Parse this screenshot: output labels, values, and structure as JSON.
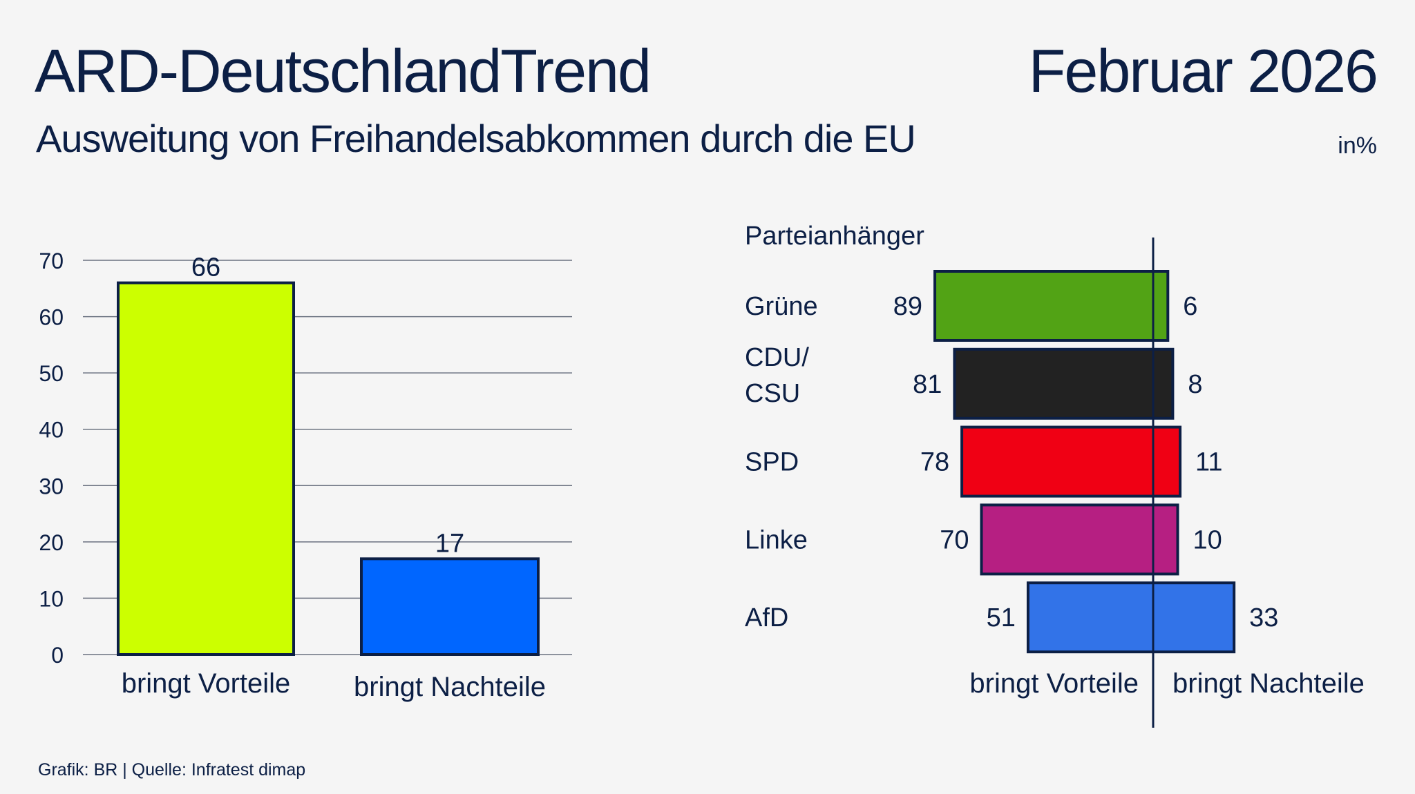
{
  "header": {
    "title": "ARD-DeutschlandTrend",
    "date": "Februar 2026",
    "subtitle": "Ausweitung von Freihandelsabkommen durch die EU",
    "unit": "in%"
  },
  "footer": {
    "source": "Grafik: BR | Quelle: Infratest dimap"
  },
  "colors": {
    "text": "#0c1f45",
    "background": "#f5f5f5",
    "grid": "#6b7280"
  },
  "chart_data": [
    {
      "type": "bar",
      "categories": [
        "bringt Vorteile",
        "bringt Nachteile"
      ],
      "values": [
        66,
        17
      ],
      "colors": [
        "#ccff00",
        "#0066ff"
      ],
      "ylim": [
        0,
        70
      ],
      "yticks": [
        0,
        10,
        20,
        30,
        40,
        50,
        60,
        70
      ],
      "grid": true
    },
    {
      "type": "bar",
      "orientation": "diverging-horizontal",
      "group_label": "Parteianhänger",
      "left_label": "bringt Vorteile",
      "right_label": "bringt Nachteile",
      "rows": [
        {
          "party": [
            "Grüne"
          ],
          "vorteile": 89,
          "nachteile": 6,
          "color": "#52a315"
        },
        {
          "party": [
            "CDU/",
            "CSU"
          ],
          "vorteile": 81,
          "nachteile": 8,
          "color": "#222222"
        },
        {
          "party": [
            "SPD"
          ],
          "vorteile": 78,
          "nachteile": 11,
          "color": "#f00014"
        },
        {
          "party": [
            "Linke"
          ],
          "vorteile": 70,
          "nachteile": 10,
          "color": "#b61f82"
        },
        {
          "party": [
            "AfD"
          ],
          "vorteile": 51,
          "nachteile": 33,
          "color": "#3273e8"
        }
      ]
    }
  ]
}
